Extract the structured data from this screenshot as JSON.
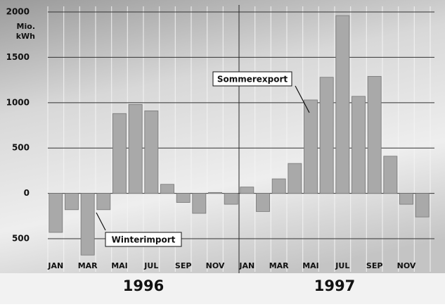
{
  "chart_data": {
    "type": "bar",
    "y_label": [
      "Mio.",
      "kWh"
    ],
    "categories": [
      "JAN",
      null,
      "MAR",
      null,
      "MAI",
      null,
      "JUL",
      null,
      "SEP",
      null,
      "NOV",
      null,
      "JAN",
      null,
      "MAR",
      null,
      "MAI",
      null,
      "JUL",
      null,
      "SEP",
      null,
      "NOV",
      null
    ],
    "values": [
      -430,
      -180,
      -680,
      -180,
      880,
      980,
      910,
      100,
      -100,
      -220,
      10,
      -120,
      70,
      -200,
      160,
      330,
      1030,
      1280,
      1960,
      1070,
      1290,
      410,
      -120,
      -260
    ],
    "color": "#a9a9a9",
    "ylim": [
      -880,
      2000
    ],
    "yticks": [
      {
        "value": -500,
        "label": "500"
      },
      0,
      500,
      1000,
      1500,
      2000
    ],
    "grid": true,
    "year_labels": [
      "1996",
      "1997"
    ],
    "annotations": [
      "Sommerexport",
      "Winterimport"
    ]
  }
}
